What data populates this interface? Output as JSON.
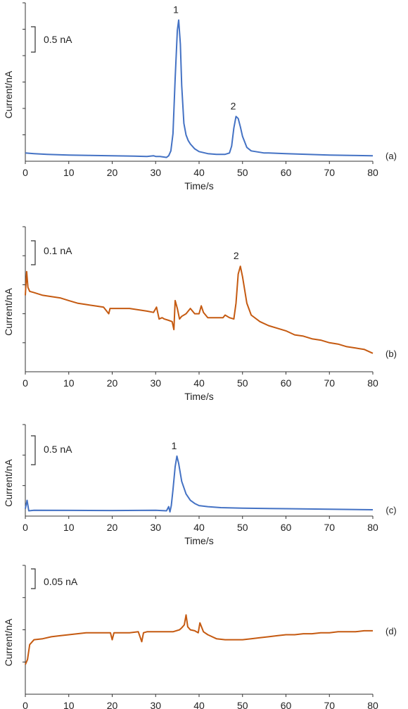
{
  "colors": {
    "blue": "#4472c4",
    "orange": "#c55a11",
    "axis": "#333333"
  },
  "chart_data": [
    {
      "type": "line",
      "panel_label": "(a)",
      "xlabel": "Time/s",
      "ylabel": "Current/nA",
      "xlim": [
        0,
        80
      ],
      "x_ticks": [
        "0",
        "10",
        "20",
        "30",
        "40",
        "50",
        "60",
        "70",
        "80"
      ],
      "scale_bar": "0.5 nA",
      "color": "blue",
      "peaks": [
        {
          "label": "1",
          "x": 35.3
        },
        {
          "label": "2",
          "x": 48.5
        }
      ],
      "series": [
        {
          "x": [
            0,
            2,
            5,
            10,
            15,
            20,
            25,
            28,
            29.5,
            30,
            31,
            32,
            32.5,
            33,
            33.5,
            34,
            34.5,
            35,
            35.3,
            35.7,
            36,
            36.5,
            37,
            37.5,
            38,
            39,
            40,
            42,
            44,
            46,
            47,
            47.5,
            48,
            48.5,
            49,
            49.5,
            50,
            51,
            52,
            53,
            54,
            55,
            56,
            60,
            65,
            70,
            75,
            80
          ],
          "y": [
            0.12,
            0.11,
            0.1,
            0.09,
            0.085,
            0.08,
            0.075,
            0.07,
            0.08,
            0.07,
            0.07,
            0.06,
            0.055,
            0.08,
            0.15,
            0.4,
            1.2,
            1.9,
            2.05,
            1.7,
            1.1,
            0.55,
            0.38,
            0.3,
            0.25,
            0.18,
            0.14,
            0.11,
            0.1,
            0.1,
            0.12,
            0.22,
            0.48,
            0.65,
            0.62,
            0.5,
            0.36,
            0.2,
            0.15,
            0.14,
            0.13,
            0.12,
            0.12,
            0.11,
            0.1,
            0.09,
            0.085,
            0.08
          ]
        }
      ]
    },
    {
      "type": "line",
      "panel_label": "(b)",
      "xlabel": "Time/s",
      "ylabel": "Current/nA",
      "xlim": [
        0,
        80
      ],
      "x_ticks": [
        "0",
        "10",
        "20",
        "30",
        "40",
        "50",
        "60",
        "70",
        "80"
      ],
      "scale_bar": "0.1 nA",
      "color": "orange",
      "peaks": [
        {
          "label": "2",
          "x": 49.2
        }
      ],
      "series": [
        {
          "x": [
            0,
            0.3,
            0.6,
            1,
            2,
            4,
            6,
            8,
            10,
            12,
            14,
            16,
            18,
            19.2,
            19.5,
            20,
            22,
            24,
            26,
            28,
            29.5,
            30.2,
            30.8,
            31.5,
            32,
            33,
            33.8,
            34.2,
            34.5,
            35,
            35.5,
            36,
            37,
            38,
            39,
            40,
            40.5,
            41,
            42,
            44,
            45.5,
            46,
            47,
            48,
            48.5,
            49,
            49.5,
            50,
            51,
            52,
            54,
            56,
            58,
            60,
            62,
            64,
            66,
            68,
            70,
            72,
            74,
            76,
            78,
            80
          ],
          "y": [
            0.24,
            0.33,
            0.27,
            0.255,
            0.25,
            0.24,
            0.235,
            0.23,
            0.22,
            0.21,
            0.205,
            0.2,
            0.195,
            0.17,
            0.19,
            0.19,
            0.19,
            0.19,
            0.185,
            0.18,
            0.175,
            0.195,
            0.15,
            0.155,
            0.15,
            0.145,
            0.14,
            0.11,
            0.22,
            0.19,
            0.15,
            0.16,
            0.17,
            0.19,
            0.17,
            0.17,
            0.2,
            0.175,
            0.155,
            0.155,
            0.155,
            0.165,
            0.155,
            0.15,
            0.21,
            0.32,
            0.35,
            0.31,
            0.21,
            0.165,
            0.14,
            0.125,
            0.115,
            0.105,
            0.09,
            0.085,
            0.075,
            0.07,
            0.06,
            0.055,
            0.045,
            0.04,
            0.035,
            0.02
          ]
        }
      ]
    },
    {
      "type": "line",
      "panel_label": "(c)",
      "xlabel": "Time/s",
      "ylabel": "Current/nA",
      "xlim": [
        0,
        80
      ],
      "x_ticks": [
        "0",
        "10",
        "20",
        "30",
        "40",
        "50",
        "60",
        "70",
        "80"
      ],
      "scale_bar": "0.5 nA",
      "color": "blue",
      "peaks": [
        {
          "label": "1",
          "x": 34.9
        }
      ],
      "series": [
        {
          "x": [
            0,
            0.4,
            0.8,
            2,
            10,
            20,
            30,
            32.5,
            33,
            33.3,
            33.6,
            34,
            34.5,
            34.9,
            35.3,
            36,
            37,
            38,
            39,
            40,
            42,
            45,
            50,
            60,
            70,
            80
          ],
          "y": [
            0.02,
            0.1,
            0.0,
            0.005,
            0.004,
            0.003,
            0.005,
            0.0,
            0.04,
            -0.01,
            0.05,
            0.2,
            0.42,
            0.52,
            0.45,
            0.28,
            0.16,
            0.1,
            0.07,
            0.05,
            0.04,
            0.03,
            0.025,
            0.02,
            0.015,
            0.01
          ]
        }
      ]
    },
    {
      "type": "line",
      "panel_label": "(d)",
      "xlabel": "Time/s",
      "ylabel": "Current/nA",
      "xlim": [
        0,
        80
      ],
      "x_ticks": [
        "0",
        "10",
        "20",
        "30",
        "40",
        "50",
        "60",
        "70",
        "80"
      ],
      "scale_bar": "0.05 nA",
      "color": "orange",
      "peaks": [],
      "series": [
        {
          "x": [
            0,
            0.5,
            1,
            2,
            4,
            6,
            8,
            10,
            12,
            14,
            16,
            18,
            19.6,
            20,
            20.4,
            22,
            24,
            26,
            26.8,
            27.2,
            28,
            30,
            32,
            34,
            35.5,
            36,
            36.6,
            37,
            37.4,
            38,
            39,
            39.8,
            40.2,
            41,
            42,
            44,
            46,
            48,
            50,
            52,
            54,
            56,
            58,
            60,
            62,
            64,
            66,
            68,
            70,
            72,
            74,
            76,
            78,
            80
          ],
          "y": [
            0.02,
            0.025,
            0.04,
            0.045,
            0.046,
            0.048,
            0.049,
            0.05,
            0.051,
            0.052,
            0.052,
            0.052,
            0.052,
            0.045,
            0.052,
            0.052,
            0.052,
            0.053,
            0.043,
            0.052,
            0.053,
            0.053,
            0.053,
            0.053,
            0.055,
            0.057,
            0.06,
            0.07,
            0.058,
            0.055,
            0.054,
            0.052,
            0.062,
            0.053,
            0.05,
            0.046,
            0.045,
            0.045,
            0.045,
            0.046,
            0.047,
            0.048,
            0.049,
            0.05,
            0.05,
            0.051,
            0.051,
            0.052,
            0.052,
            0.053,
            0.053,
            0.053,
            0.054,
            0.054
          ]
        }
      ]
    }
  ]
}
